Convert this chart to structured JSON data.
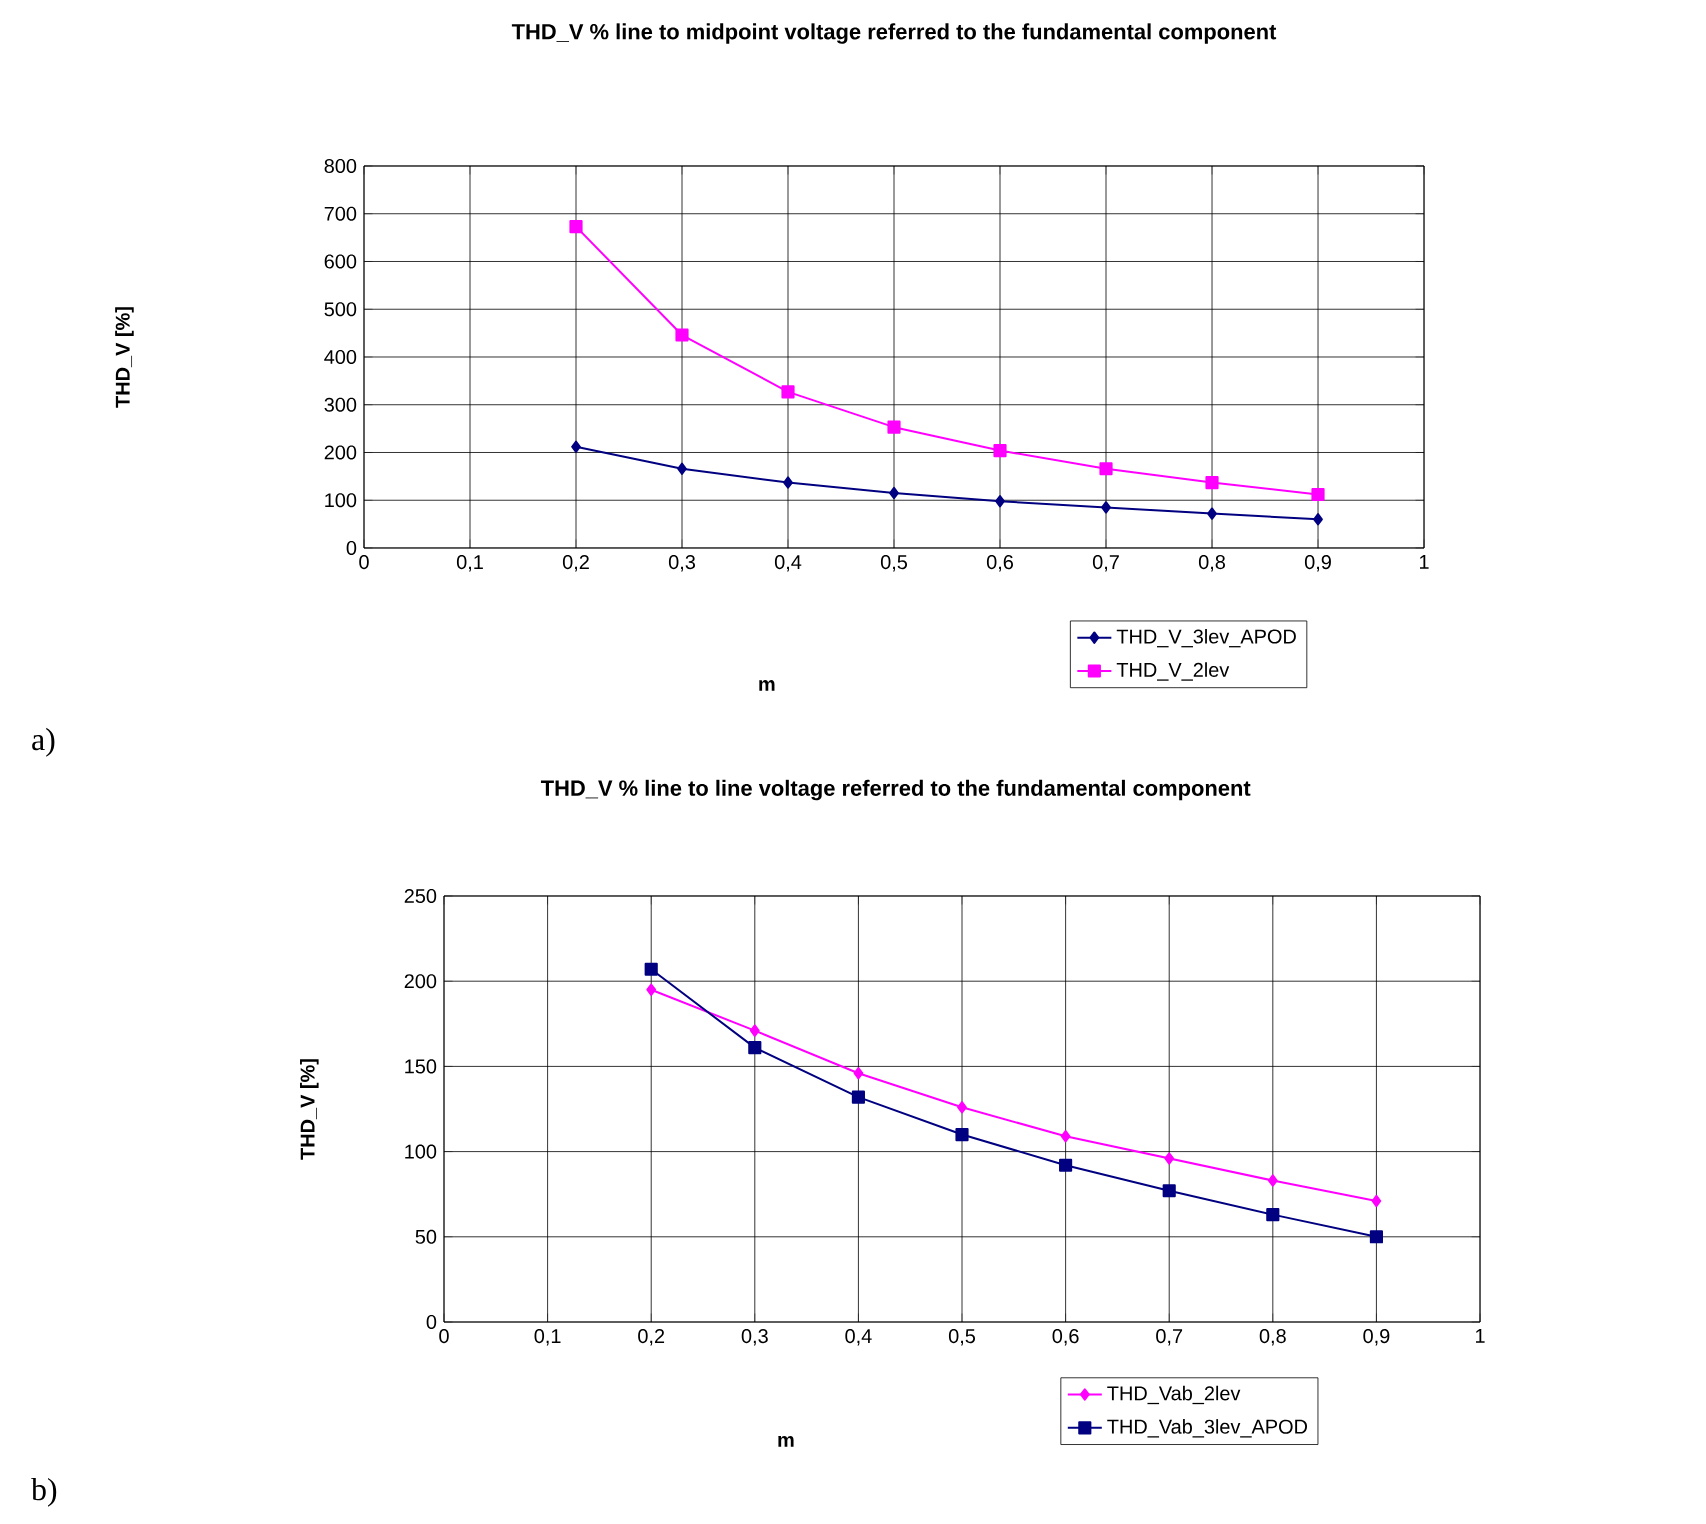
{
  "chart_data": [
    {
      "type": "line",
      "title": "THD_V % line to midpoint voltage referred to the fundamental component",
      "xlabel": "m",
      "ylabel": "THD_V [%]",
      "annotations": [
        "a)"
      ],
      "xlim": [
        0,
        1
      ],
      "ylim": [
        0,
        800
      ],
      "xticks": [
        0,
        {
          "value": 0.1,
          "label": "0,1"
        },
        {
          "value": 0.2,
          "label": "0,2"
        },
        {
          "value": 0.3,
          "label": "0,3"
        },
        {
          "value": 0.4,
          "label": "0,4"
        },
        {
          "value": 0.5,
          "label": "0,5"
        },
        {
          "value": 0.6,
          "label": "0,6"
        },
        {
          "value": 0.7,
          "label": "0,7"
        },
        {
          "value": 0.8,
          "label": "0,8"
        },
        {
          "value": 0.9,
          "label": "0,9"
        },
        1
      ],
      "yticks": [
        0,
        100,
        200,
        300,
        400,
        500,
        600,
        700,
        800
      ],
      "x": [
        0.2,
        0.3,
        0.4,
        0.5,
        0.6,
        0.7,
        0.8,
        0.9
      ],
      "grid": true,
      "legend": "bottom right",
      "line_style": "solid",
      "series": [
        {
          "name": "THD_V_3lev_APOD",
          "color": "#000080",
          "marker": "diamond",
          "values": [
            212,
            166,
            137,
            115,
            98,
            85,
            72,
            60
          ]
        },
        {
          "name": "THD_V_2lev",
          "color": "#ff00ff",
          "marker": "square",
          "values": [
            673,
            446,
            327,
            253,
            204,
            166,
            137,
            112
          ]
        }
      ]
    },
    {
      "type": "line",
      "title": "THD_V % line to line voltage referred to the fundamental component",
      "xlabel": "m",
      "ylabel": "THD_V [%]",
      "annotations": [
        "b)"
      ],
      "xlim": [
        0,
        1
      ],
      "ylim": [
        0,
        250
      ],
      "xticks": [
        0,
        {
          "value": 0.1,
          "label": "0,1"
        },
        {
          "value": 0.2,
          "label": "0,2"
        },
        {
          "value": 0.3,
          "label": "0,3"
        },
        {
          "value": 0.4,
          "label": "0,4"
        },
        {
          "value": 0.5,
          "label": "0,5"
        },
        {
          "value": 0.6,
          "label": "0,6"
        },
        {
          "value": 0.7,
          "label": "0,7"
        },
        {
          "value": 0.8,
          "label": "0,8"
        },
        {
          "value": 0.9,
          "label": "0,9"
        },
        1
      ],
      "yticks": [
        0,
        50,
        100,
        150,
        200,
        250
      ],
      "x": [
        0.2,
        0.3,
        0.4,
        0.5,
        0.6,
        0.7,
        0.8,
        0.9
      ],
      "grid": true,
      "legend": "bottom right",
      "line_style": "solid",
      "series": [
        {
          "name": "THD_Vab_2lev",
          "color": "#ff00ff",
          "marker": "diamond",
          "values": [
            195,
            171,
            146,
            126,
            109,
            96,
            83,
            71
          ]
        },
        {
          "name": "THD_Vab_3lev_APOD",
          "color": "#000080",
          "marker": "square",
          "values": [
            207,
            161,
            132,
            110,
            92,
            77,
            63,
            50
          ]
        }
      ]
    }
  ]
}
